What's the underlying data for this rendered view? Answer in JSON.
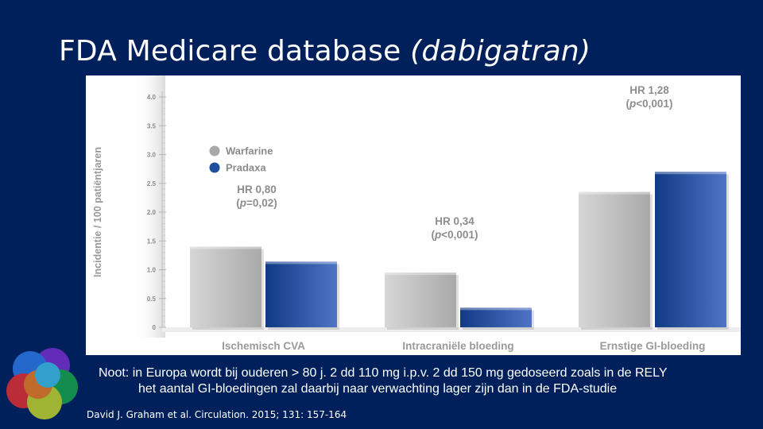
{
  "slide": {
    "title_main": "FDA Medicare database ",
    "title_italic": "(dabigatran)",
    "note_line1": "Noot: in Europa wordt bij ouderen > 80 j. 2 dd 110 mg i.p.v. 2 dd 150 mg gedoseerd zoals in de RELY",
    "note_line2": "het aantal GI-bloedingen zal daarbij naar verwachting lager zijn dan in de FDA-studie",
    "citation": "David J. Graham et al. Circulation. 2015; 131: 157-164",
    "logo_icon": "overlapping-circles-logo-icon"
  },
  "chart_data": {
    "type": "bar",
    "ylabel": "Incidentie / 100 patiëntjaren",
    "ylim": [
      0,
      4.0
    ],
    "yticks": [
      "0",
      "0.5",
      "1.0",
      "1.5",
      "2.0",
      "2.5",
      "3.0",
      "3.5",
      "4.0"
    ],
    "categories": [
      "Ischemisch CVA",
      "Intracraniële bloeding",
      "Ernstige GI-bloeding"
    ],
    "series": [
      {
        "name": "Warfarine",
        "color": "#b4b4b4",
        "values": [
          1.4,
          0.95,
          2.35
        ]
      },
      {
        "name": "Pradaxa",
        "color": "#1f4f9c",
        "values": [
          1.14,
          0.34,
          2.7
        ]
      }
    ],
    "legend_position": "top-left",
    "annotations": [
      {
        "hr": "HR 0,80",
        "p": "(p=0,02)",
        "p_letter": "p",
        "p_rest": "=0,02)"
      },
      {
        "hr": "HR 0,34",
        "p": "(p<0,001)",
        "p_letter": "p",
        "p_rest": "<0,001)"
      },
      {
        "hr": "HR 1,28",
        "p": "(p<0,001)",
        "p_letter": "p",
        "p_rest": "<0,001)"
      }
    ]
  }
}
